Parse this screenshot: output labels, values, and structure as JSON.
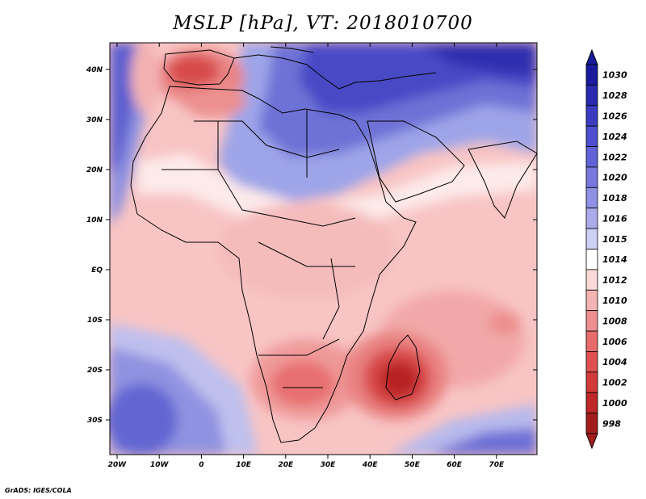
{
  "title": "MSLP [hPa], VT: 2018010700",
  "credit": "GrADS: IGES/COLA",
  "lat_labels": [
    "40N",
    "30N",
    "20N",
    "10N",
    "EQ",
    "10S",
    "20S",
    "30S"
  ],
  "lon_labels": [
    "20W",
    "10W",
    "0",
    "10E",
    "20E",
    "30E",
    "40E",
    "50E",
    "60E",
    "70E"
  ],
  "colorbar": {
    "labels": [
      "1030",
      "1028",
      "1026",
      "1024",
      "1022",
      "1020",
      "1018",
      "1016",
      "1015",
      "1014",
      "1012",
      "1010",
      "1008",
      "1006",
      "1004",
      "1002",
      "1000",
      "998"
    ],
    "colors": [
      "#1a1a9c",
      "#2a2ab0",
      "#3b3bc2",
      "#4e4ed0",
      "#6262d8",
      "#7878de",
      "#9090e4",
      "#ababec",
      "#cdd1f5",
      "#ffffff",
      "#fbd9d9",
      "#f5b4b4",
      "#ef9090",
      "#e86b6b",
      "#e05050",
      "#d33a3a",
      "#bf2828",
      "#a41d1d"
    ]
  }
}
